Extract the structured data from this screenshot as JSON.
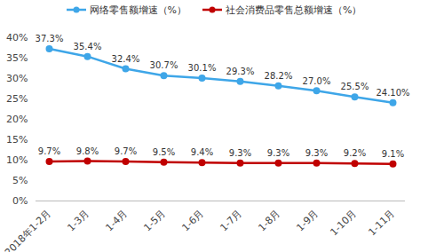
{
  "chart_data": {
    "type": "line",
    "categories": [
      "2018年1-2月",
      "1-3月",
      "1-4月",
      "1-5月",
      "1-6月",
      "1-7月",
      "1-8月",
      "1-9月",
      "1-10月",
      "1-11月"
    ],
    "series": [
      {
        "name": "网络零售额增速（%）",
        "color": "#3ea6e8",
        "marker": "circle",
        "line_style": "solid",
        "values": [
          37.3,
          35.4,
          32.4,
          30.7,
          30.1,
          29.3,
          28.2,
          27.0,
          25.5,
          24.1
        ],
        "value_labels": [
          "37.3%",
          "35.4%",
          "32.4%",
          "30.7%",
          "30.1%",
          "29.3%",
          "28.2%",
          "27.0%",
          "25.5%",
          "24.10%"
        ]
      },
      {
        "name": "社会消费品零售总额增速（%）",
        "color": "#c00000",
        "marker": "circle",
        "line_style": "solid",
        "values": [
          9.7,
          9.8,
          9.7,
          9.5,
          9.4,
          9.3,
          9.3,
          9.3,
          9.2,
          9.1
        ],
        "value_labels": [
          "9.7%",
          "9.8%",
          "9.7%",
          "9.5%",
          "9.4%",
          "9.3%",
          "9.3%",
          "9.3%",
          "9.2%",
          "9.1%"
        ]
      }
    ],
    "ylim": [
      0,
      40
    ],
    "yticks": [
      {
        "value": 0,
        "label": "0%"
      },
      {
        "value": 5,
        "label": "5%"
      },
      {
        "value": 10,
        "label": "10%"
      },
      {
        "value": 15,
        "label": "15%"
      },
      {
        "value": 20,
        "label": "20%"
      },
      {
        "value": 25,
        "label": "25%"
      },
      {
        "value": 30,
        "label": "30%"
      },
      {
        "value": 35,
        "label": "35%"
      },
      {
        "value": 40,
        "label": "40%"
      }
    ],
    "grid": false,
    "legend": "top",
    "data_labels": true
  }
}
